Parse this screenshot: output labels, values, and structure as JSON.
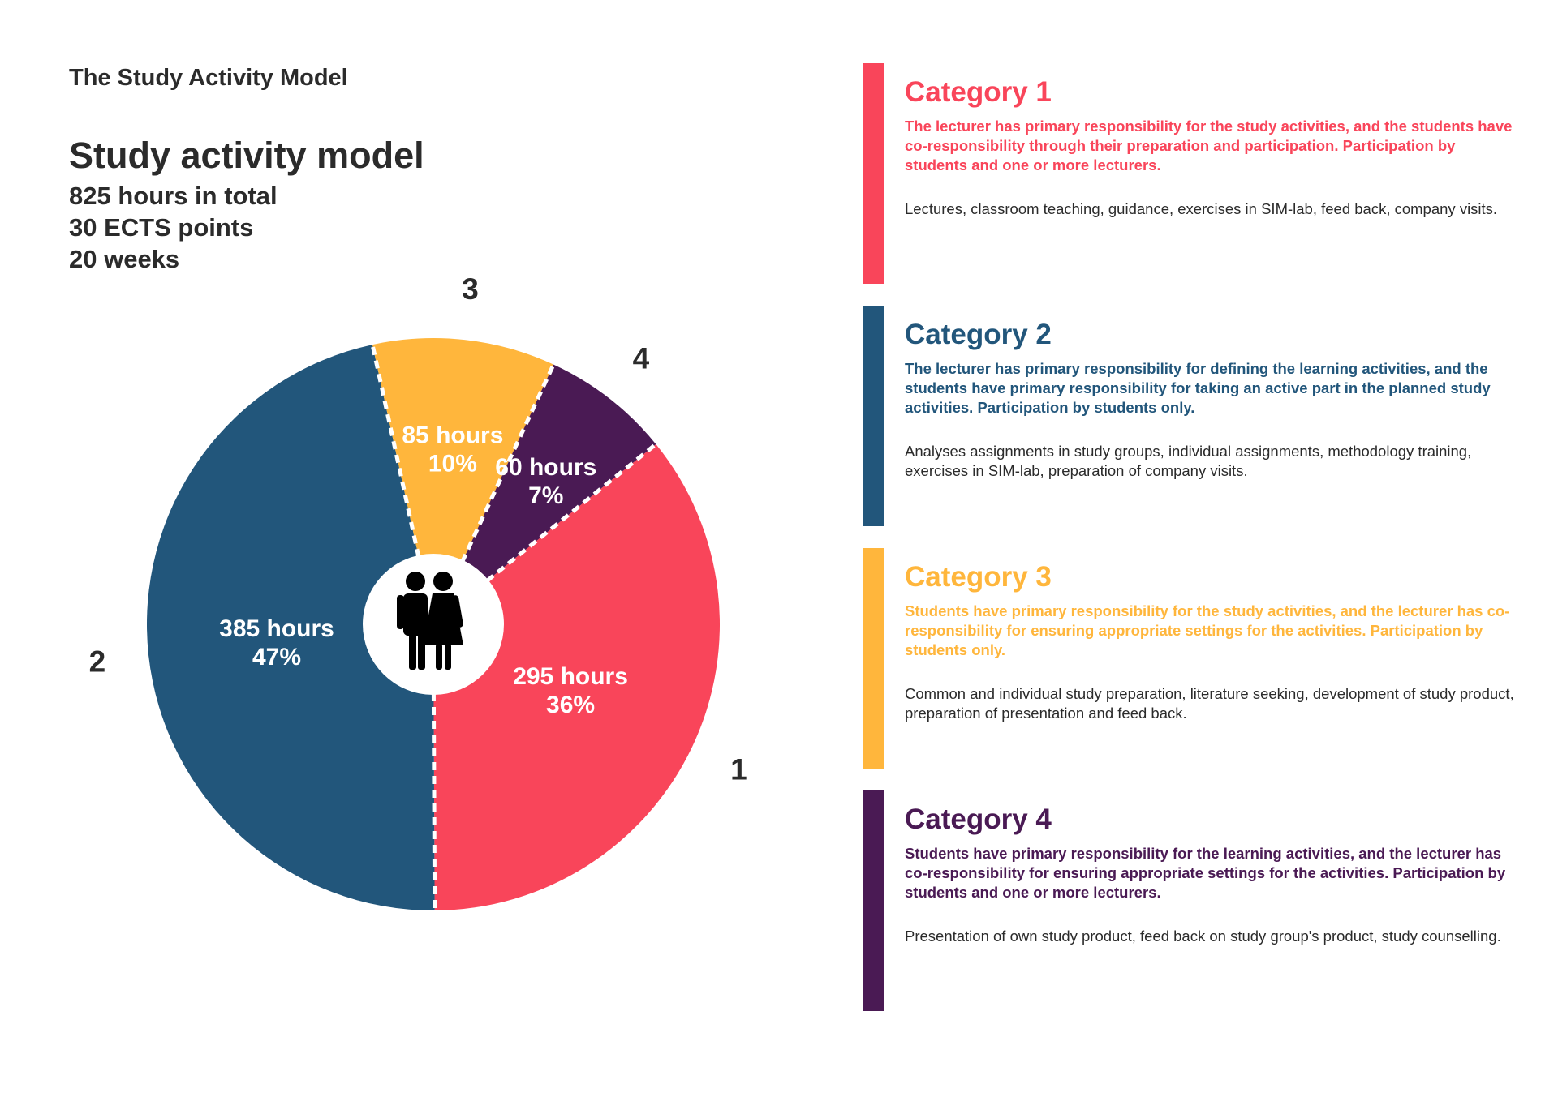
{
  "page": {
    "title": "The Study Activity Model"
  },
  "model": {
    "heading": "Study activity model",
    "total_hours": "825 hours in total",
    "ects": "30 ECTS points",
    "weeks": "20 weeks"
  },
  "colors": {
    "category_1": "#f9455a",
    "category_2": "#22567b",
    "category_3": "#ffb63c",
    "category_4": "#4a1a54",
    "text": "#2b2b2b"
  },
  "chart_data": {
    "type": "pie",
    "title": "Study activity model",
    "center_icon": "people-icon",
    "slices": [
      {
        "number": "1",
        "hours": 295,
        "hours_label": "295 hours",
        "percent_label": "36%",
        "color": "#f9455a"
      },
      {
        "number": "2",
        "hours": 385,
        "hours_label": "385 hours",
        "percent_label": "47%",
        "color": "#22567b"
      },
      {
        "number": "3",
        "hours": 85,
        "hours_label": "85 hours",
        "percent_label": "10%",
        "color": "#ffb63c"
      },
      {
        "number": "4",
        "hours": 60,
        "hours_label": "60 hours",
        "percent_label": "7%",
        "color": "#4a1a54"
      }
    ]
  },
  "categories": [
    {
      "title": "Category 1",
      "responsibility": "The lecturer has primary responsibility for the study activities, and the students have co-responsibility through their preparation and participation. Participation by students and one or more lecturers.",
      "activities": "Lectures, classroom teaching, guidance, exercises in SIM-lab, feed back, company visits.",
      "color": "#f9455a"
    },
    {
      "title": "Category 2",
      "responsibility": "The lecturer has primary responsibility for defining the learning activities, and the students have primary responsibility for taking an active part in the planned study activities. Participation by students only.",
      "activities": "Analyses assignments in study groups, individual assignments, methodology training, exercises in SIM-lab, preparation of company visits.",
      "color": "#22567b"
    },
    {
      "title": "Category 3",
      "responsibility": "Students have primary responsibility for the study activities, and the lecturer has co-responsibility for ensuring appropriate settings for the activities. Participation by students only.",
      "activities": "Common and individual study preparation, literature seeking, development of study product, preparation of presentation and feed back.",
      "color": "#ffb63c"
    },
    {
      "title": "Category 4",
      "responsibility": "Students have primary responsibility for the learning activities, and the lecturer has co-responsibility for ensuring appropriate settings for the activities. Participation by students and one or more lecturers.",
      "activities": "Presentation of own study product, feed back on study group's product, study counselling.",
      "color": "#4a1a54"
    }
  ]
}
